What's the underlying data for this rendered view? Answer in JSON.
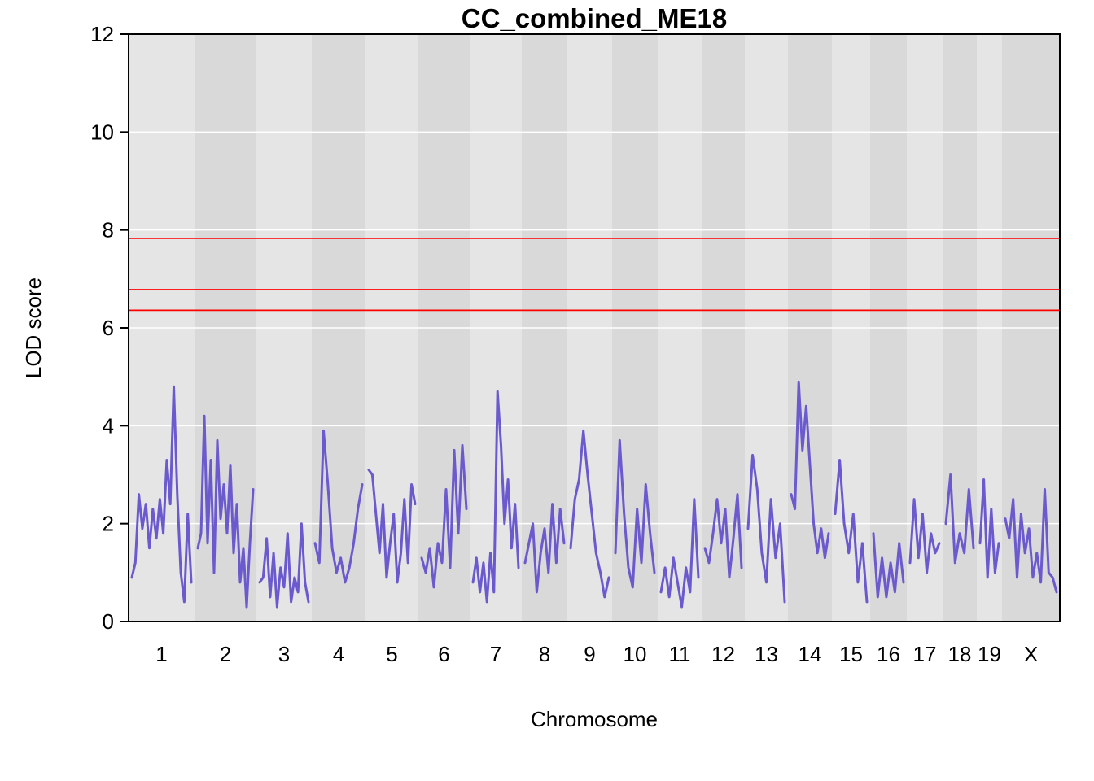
{
  "chart_data": {
    "type": "line",
    "title": "CC_combined_ME18",
    "xlabel": "Chromosome",
    "ylabel": "LOD score",
    "ylim": [
      0,
      12
    ],
    "yticks": [
      0,
      2,
      4,
      6,
      8,
      10,
      12
    ],
    "grid": true,
    "colors": {
      "band_light": "#e5e5e5",
      "band_dark": "#d9d9d9",
      "gridline": "#ffffff",
      "line": "#6a5acd",
      "threshold": "#ff0000"
    },
    "thresholds": [
      7.83,
      6.78,
      6.36
    ],
    "chromosomes": [
      {
        "label": "1",
        "values": [
          0.9,
          1.2,
          2.6,
          1.9,
          2.4,
          1.5,
          2.3,
          1.7,
          2.5,
          1.8,
          3.3,
          2.4,
          4.8,
          2.6,
          1.0,
          0.4,
          2.2,
          0.8
        ]
      },
      {
        "label": "2",
        "values": [
          1.5,
          1.8,
          4.2,
          1.6,
          3.3,
          1.0,
          3.7,
          2.1,
          2.8,
          1.8,
          3.2,
          1.4,
          2.4,
          0.8,
          1.5,
          0.3,
          1.6,
          2.7
        ]
      },
      {
        "label": "3",
        "values": [
          0.8,
          0.9,
          1.7,
          0.5,
          1.4,
          0.3,
          1.1,
          0.7,
          1.8,
          0.4,
          0.9,
          0.6,
          2.0,
          0.8,
          0.4
        ]
      },
      {
        "label": "4",
        "values": [
          1.6,
          1.2,
          3.9,
          2.8,
          1.5,
          1.0,
          1.3,
          0.8,
          1.1,
          1.6,
          2.3,
          2.8
        ]
      },
      {
        "label": "5",
        "values": [
          3.1,
          3.0,
          2.2,
          1.4,
          2.4,
          0.9,
          1.6,
          2.2,
          0.8,
          1.4,
          2.5,
          1.2,
          2.8,
          2.4
        ]
      },
      {
        "label": "6",
        "values": [
          1.3,
          1.0,
          1.5,
          0.7,
          1.6,
          1.2,
          2.7,
          1.1,
          3.5,
          1.8,
          3.6,
          2.3
        ]
      },
      {
        "label": "7",
        "values": [
          0.8,
          1.3,
          0.6,
          1.2,
          0.4,
          1.4,
          0.6,
          4.7,
          3.6,
          2.0,
          2.9,
          1.5,
          2.4,
          1.1
        ]
      },
      {
        "label": "8",
        "values": [
          1.2,
          1.6,
          2.0,
          0.6,
          1.4,
          1.9,
          1.0,
          2.4,
          1.2,
          2.3,
          1.6
        ]
      },
      {
        "label": "9",
        "values": [
          1.5,
          2.5,
          2.9,
          3.9,
          3.0,
          2.2,
          1.4,
          1.0,
          0.5,
          0.9
        ]
      },
      {
        "label": "10",
        "values": [
          1.4,
          3.7,
          2.2,
          1.1,
          0.7,
          2.3,
          1.2,
          2.8,
          1.8,
          1.0
        ]
      },
      {
        "label": "11",
        "values": [
          0.6,
          1.1,
          0.5,
          1.3,
          0.8,
          0.3,
          1.1,
          0.6,
          2.5,
          0.9
        ]
      },
      {
        "label": "12",
        "values": [
          1.5,
          1.2,
          1.8,
          2.5,
          1.6,
          2.3,
          0.9,
          1.7,
          2.6,
          1.1
        ]
      },
      {
        "label": "13",
        "values": [
          1.9,
          3.4,
          2.7,
          1.4,
          0.8,
          2.5,
          1.3,
          2.0,
          0.4
        ]
      },
      {
        "label": "14",
        "values": [
          2.6,
          2.3,
          4.9,
          3.5,
          4.4,
          3.2,
          2.0,
          1.4,
          1.9,
          1.3,
          1.8
        ]
      },
      {
        "label": "15",
        "values": [
          2.2,
          3.3,
          2.0,
          1.4,
          2.2,
          0.8,
          1.6,
          0.4
        ]
      },
      {
        "label": "16",
        "values": [
          1.8,
          0.5,
          1.3,
          0.5,
          1.2,
          0.6,
          1.6,
          0.8
        ]
      },
      {
        "label": "17",
        "values": [
          1.2,
          2.5,
          1.3,
          2.2,
          1.0,
          1.8,
          1.4,
          1.6
        ]
      },
      {
        "label": "18",
        "values": [
          2.0,
          3.0,
          1.2,
          1.8,
          1.4,
          2.7,
          1.5
        ]
      },
      {
        "label": "19",
        "values": [
          1.6,
          2.9,
          0.9,
          2.3,
          1.0,
          1.6
        ]
      },
      {
        "label": "X",
        "values": [
          2.1,
          1.7,
          2.5,
          0.9,
          2.2,
          1.4,
          1.9,
          0.9,
          1.4,
          0.8,
          2.7,
          1.0,
          0.9,
          0.6
        ]
      }
    ]
  }
}
